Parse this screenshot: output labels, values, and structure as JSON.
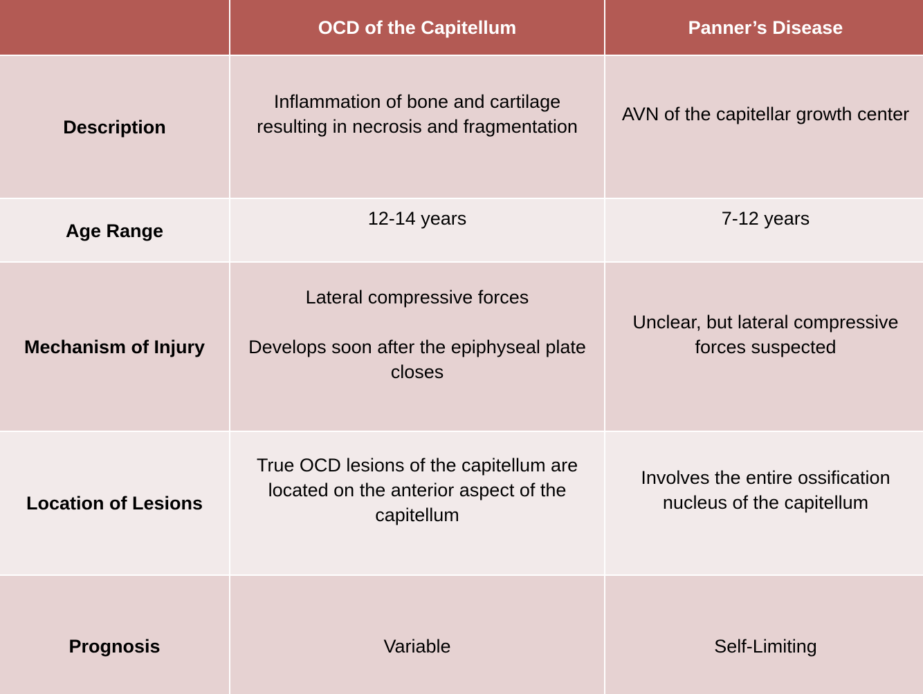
{
  "header": {
    "corner": "",
    "col1": "OCD of the Capitellum",
    "col2": "Panner’s Disease"
  },
  "rows": [
    {
      "label": "Description",
      "ocd": [
        "Inflammation of bone and cartilage",
        "resulting in necrosis and fragmentation"
      ],
      "panner": [
        "AVN of the capitellar growth center"
      ]
    },
    {
      "label": "Age Range",
      "ocd": [
        "12-14 years"
      ],
      "panner": [
        "7-12 years"
      ]
    },
    {
      "label": "Mechanism of Injury",
      "ocd_p1": "Lateral compressive forces",
      "ocd_p2": [
        "Develops soon after the epiphyseal plate",
        "closes"
      ],
      "panner": [
        "Unclear, but lateral compressive",
        "forces suspected"
      ]
    },
    {
      "label": "Location of Lesions",
      "ocd": [
        "True OCD lesions of the capitellum are",
        "located on the anterior aspect of the",
        "capitellum"
      ],
      "panner": [
        "Involves the entire ossification",
        "nucleus of the capitellum"
      ]
    },
    {
      "label": "Prognosis",
      "ocd": [
        "Variable"
      ],
      "panner": [
        "Self-Limiting"
      ]
    }
  ]
}
